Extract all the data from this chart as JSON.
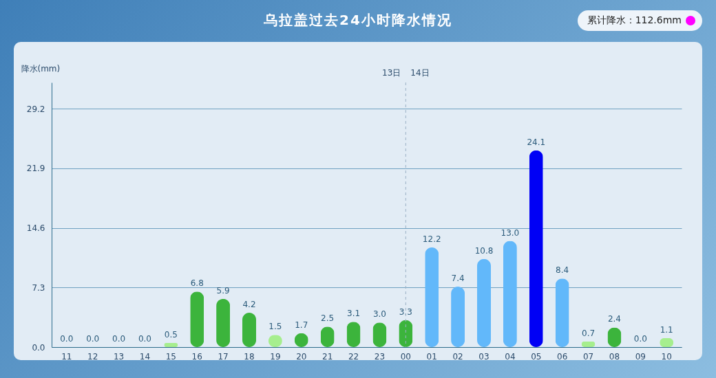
{
  "chart_data": {
    "type": "bar",
    "title": "乌拉盖过去24小时降水情况",
    "ylabel": "降水(mm)",
    "categories": [
      "11",
      "12",
      "13",
      "14",
      "15",
      "16",
      "17",
      "18",
      "19",
      "20",
      "21",
      "22",
      "23",
      "00",
      "01",
      "02",
      "03",
      "04",
      "05",
      "06",
      "07",
      "08",
      "09",
      "10"
    ],
    "values": [
      0.0,
      0.0,
      0.0,
      0.0,
      0.5,
      6.8,
      5.9,
      4.2,
      1.5,
      1.7,
      2.5,
      3.1,
      3.0,
      3.3,
      12.2,
      7.4,
      10.8,
      13.0,
      24.1,
      8.4,
      0.7,
      2.4,
      0.0,
      1.1
    ],
    "colors": [
      "#ffffff",
      "#ffffff",
      "#ffffff",
      "#ffffff",
      "#a6ee8e",
      "#3cb43c",
      "#3cb43c",
      "#3cb43c",
      "#a6ee8e",
      "#3cb43c",
      "#3cb43c",
      "#3cb43c",
      "#3cb43c",
      "#3cb43c",
      "#62b8fa",
      "#62b8fa",
      "#62b8fa",
      "#62b8fa",
      "#0000f5",
      "#62b8fa",
      "#a6ee8e",
      "#3cb43c",
      "#ffffff",
      "#a6ee8e"
    ],
    "value_labels": [
      "0.0",
      "0.0",
      "0.0",
      "0.0",
      "0.5",
      "6.8",
      "5.9",
      "4.2",
      "1.5",
      "1.7",
      "2.5",
      "3.1",
      "3.0",
      "3.3",
      "12.2",
      "7.4",
      "10.8",
      "13.0",
      "24.1",
      "8.4",
      "0.7",
      "2.4",
      "0.0",
      "1.1"
    ],
    "ylim": [
      0,
      32.4
    ],
    "yticks": [
      {
        "value": 0,
        "label": "0.0"
      },
      7.3,
      14.6,
      21.9,
      29.2
    ],
    "grid": "y",
    "ref_lines": [
      {
        "axis": "x",
        "value": "00",
        "line_style": "dashed"
      }
    ],
    "annotations": [
      "累计降水：112.6mm",
      "13日",
      "14日"
    ]
  }
}
